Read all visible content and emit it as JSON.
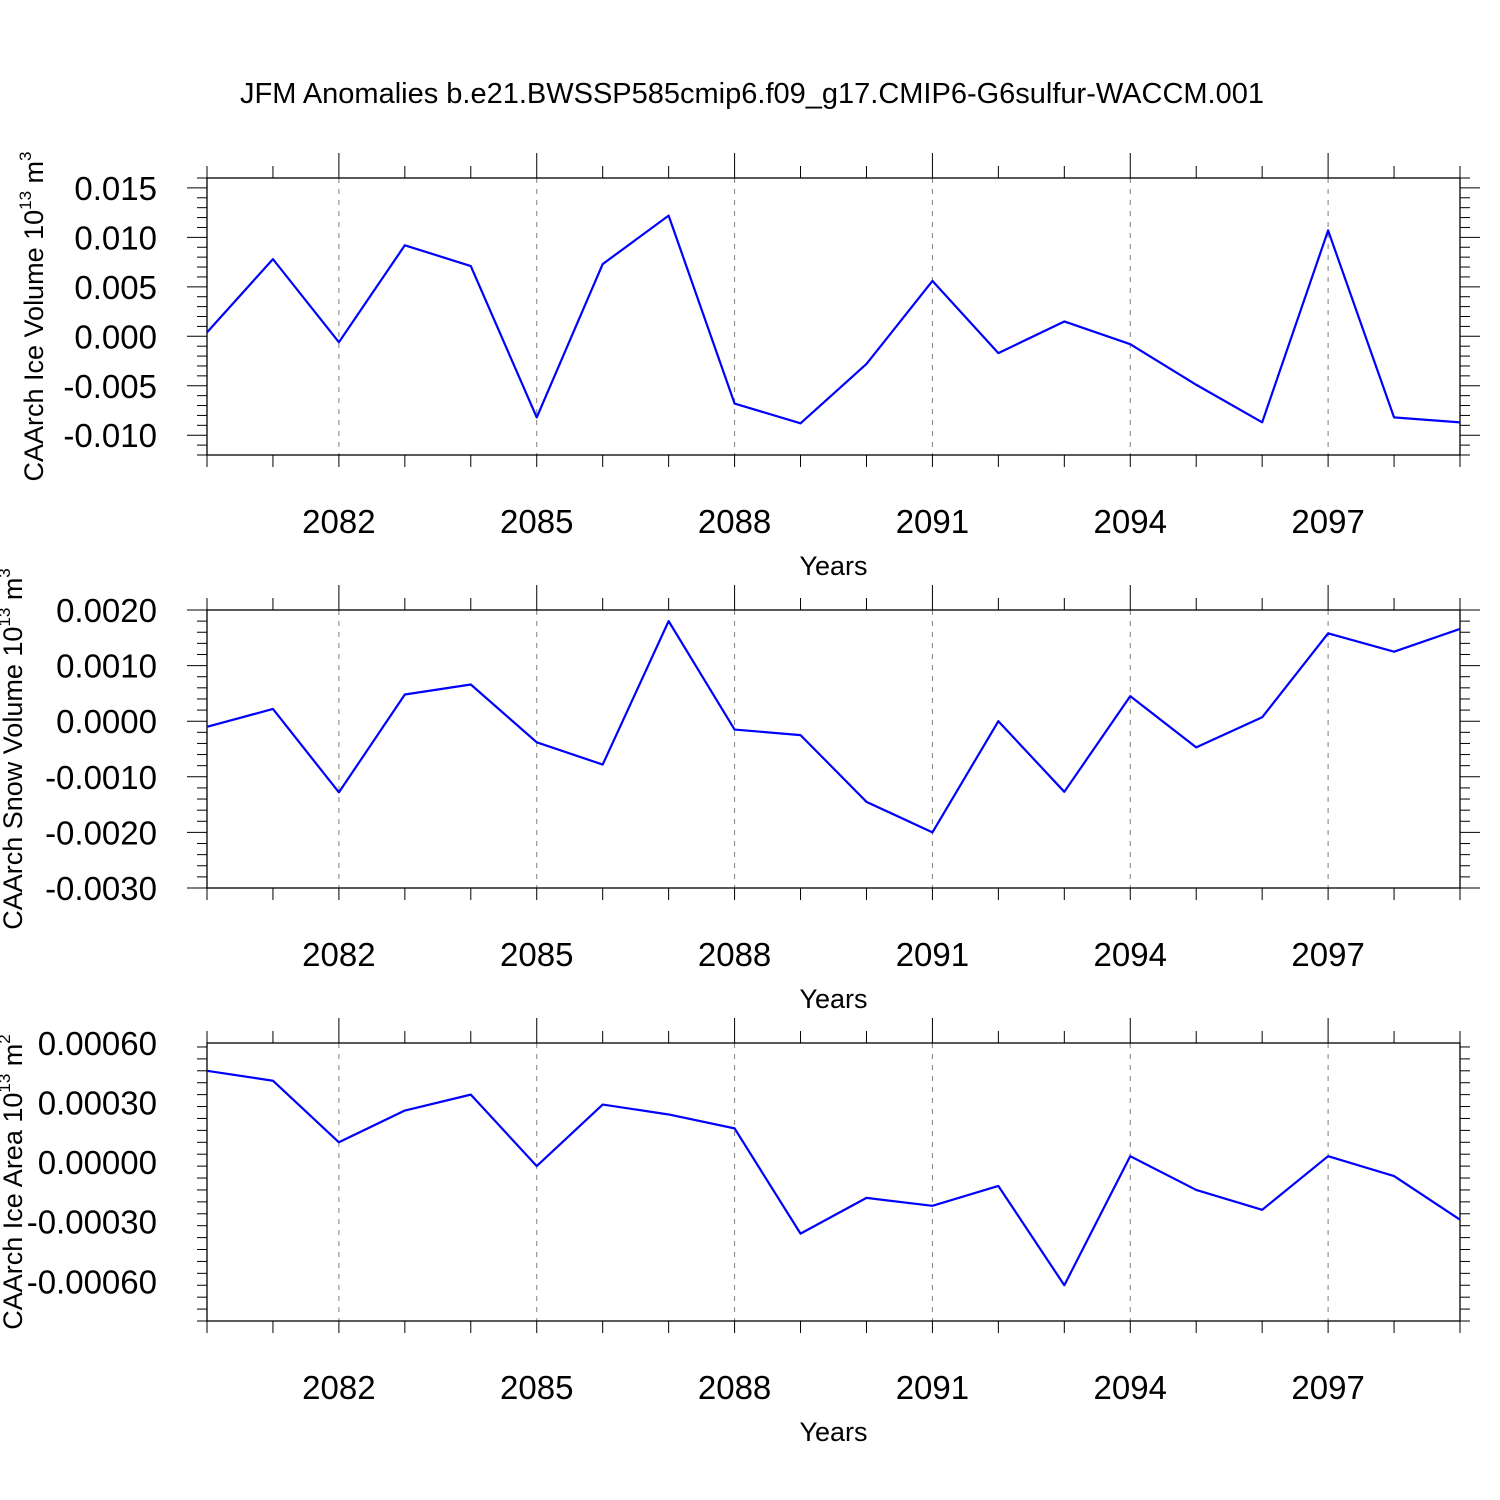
{
  "title": "JFM Anomalies b.e21.BWSSP585cmip6.f09_g17.CMIP6-G6sulfur-WACCM.001",
  "colors": {
    "line": "#0000ff",
    "axes": "#000000",
    "grid": "#808080"
  },
  "chart_data": [
    {
      "type": "line",
      "title": "",
      "xlabel": "Years",
      "ylabel": "CAArch Ice Volume 10",
      "ylabel_exp": "13",
      "ylabel_unit": "m",
      "ylabel_unit_exp": "3",
      "xlim": [
        2080,
        2099
      ],
      "ylim": [
        -0.012,
        0.016
      ],
      "xticks": [
        "2082",
        "2085",
        "2088",
        "2091",
        "2094",
        "2097"
      ],
      "yticks": [
        "0.015",
        "0.010",
        "0.005",
        "0.000",
        "-0.005",
        "-0.010"
      ],
      "ytick_values": [
        0.015,
        0.01,
        0.005,
        0.0,
        -0.005,
        -0.01
      ],
      "grid": "vertical dashed at major x ticks",
      "x": [
        2080,
        2081,
        2082,
        2083,
        2084,
        2085,
        2086,
        2087,
        2088,
        2089,
        2090,
        2091,
        2092,
        2093,
        2094,
        2095,
        2096,
        2097,
        2098,
        2099
      ],
      "values": [
        0.0004,
        0.0078,
        -0.0006,
        0.0092,
        0.0071,
        -0.0082,
        0.0073,
        0.0122,
        -0.0068,
        -0.0088,
        -0.0028,
        0.0056,
        -0.0017,
        0.0015,
        -0.0008,
        -0.0049,
        -0.0087,
        0.0107,
        -0.0082,
        -0.0087
      ]
    },
    {
      "type": "line",
      "title": "",
      "xlabel": "Years",
      "ylabel": "CAArch Snow Volume 10",
      "ylabel_exp": "13",
      "ylabel_unit": "m",
      "ylabel_unit_exp": "3",
      "xlim": [
        2080,
        2099
      ],
      "ylim": [
        -0.003,
        0.002
      ],
      "xticks": [
        "2082",
        "2085",
        "2088",
        "2091",
        "2094",
        "2097"
      ],
      "yticks": [
        "0.0020",
        "0.0010",
        "0.0000",
        "-0.0010",
        "-0.0020",
        "-0.0030"
      ],
      "ytick_values": [
        0.002,
        0.001,
        0.0,
        -0.001,
        -0.002,
        -0.003
      ],
      "grid": "vertical dashed at major x ticks",
      "x": [
        2080,
        2081,
        2082,
        2083,
        2084,
        2085,
        2086,
        2087,
        2088,
        2089,
        2090,
        2091,
        2092,
        2093,
        2094,
        2095,
        2096,
        2097,
        2098,
        2099
      ],
      "values": [
        -0.0001,
        0.00022,
        -0.00128,
        0.00048,
        0.00066,
        -0.00038,
        -0.00078,
        0.0018,
        -0.00015,
        -0.00025,
        -0.00145,
        -0.002,
        0.0,
        -0.00127,
        0.00045,
        -0.00047,
        7e-05,
        0.00158,
        0.00125,
        0.00166
      ]
    },
    {
      "type": "line",
      "title": "",
      "xlabel": "Years",
      "ylabel": "CAArch Ice Area 10",
      "ylabel_exp": "13",
      "ylabel_unit": "m",
      "ylabel_unit_exp": "2",
      "xlim": [
        2080,
        2099
      ],
      "ylim": [
        -0.0008,
        0.0006
      ],
      "xticks": [
        "2082",
        "2085",
        "2088",
        "2091",
        "2094",
        "2097"
      ],
      "yticks": [
        "0.00060",
        "0.00030",
        "0.00000",
        "-0.00030",
        "-0.00060"
      ],
      "ytick_values": [
        0.0006,
        0.0003,
        0.0,
        -0.0003,
        -0.0006
      ],
      "grid": "vertical dashed at major x ticks",
      "x": [
        2080,
        2081,
        2082,
        2083,
        2084,
        2085,
        2086,
        2087,
        2088,
        2089,
        2090,
        2091,
        2092,
        2093,
        2094,
        2095,
        2096,
        2097,
        2098,
        2099
      ],
      "values": [
        0.00046,
        0.00041,
        0.0001,
        0.00026,
        0.00034,
        -2e-05,
        0.00029,
        0.00024,
        0.00017,
        -0.00036,
        -0.00018,
        -0.00022,
        -0.00012,
        -0.00062,
        3e-05,
        -0.00014,
        -0.00024,
        3e-05,
        -7e-05,
        -0.00029
      ]
    }
  ]
}
